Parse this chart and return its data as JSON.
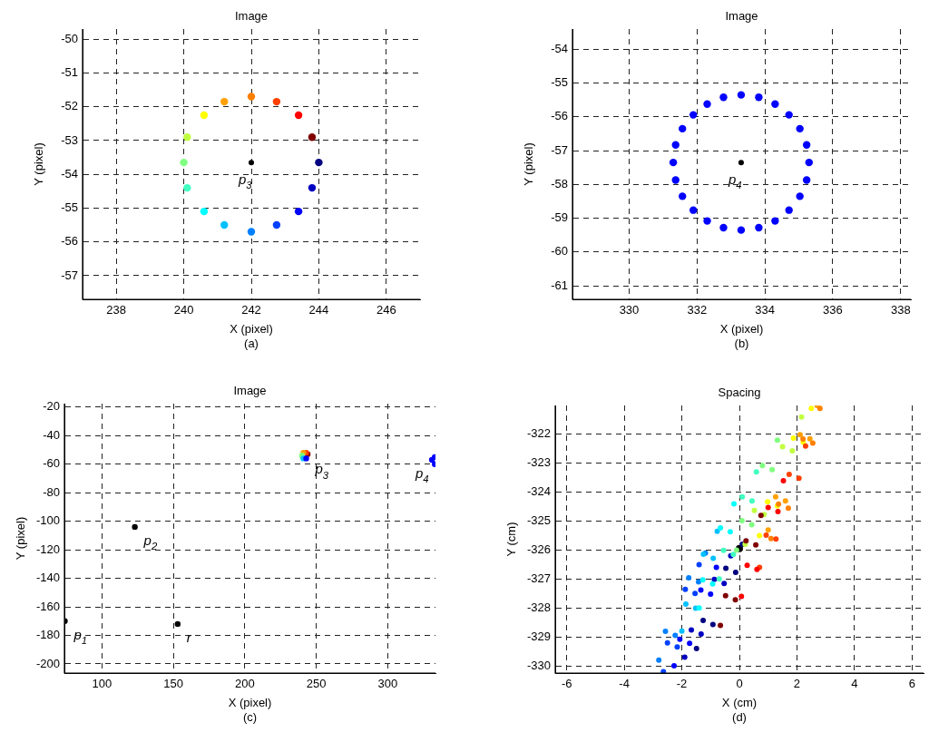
{
  "chart_data": [
    {
      "type": "scatter",
      "title": "Image",
      "xlabel": "X (pixel)",
      "ylabel": "Y (pixel)",
      "marker": "circle",
      "grid": true,
      "xlim": [
        237,
        247
      ],
      "xticks": [
        238,
        240,
        242,
        244,
        246
      ],
      "ylim": [
        -57.7,
        -49.7
      ],
      "yticks": [
        -57,
        -56,
        -55,
        -54,
        -53,
        -52,
        -51,
        -50
      ],
      "series": [
        {
          "x": [
            243.8,
            243.4,
            242.75,
            242,
            241.2,
            240.6,
            240.1,
            240,
            240.1,
            240.6,
            241.2,
            242,
            242.75,
            243.4,
            243.8,
            244
          ],
          "values": [
            -52.9,
            -52.25,
            -51.85,
            -51.7,
            -51.85,
            -52.25,
            -52.9,
            -53.65,
            -54.4,
            -55.1,
            -55.5,
            -55.7,
            -55.5,
            -55.1,
            -54.4,
            -53.65
          ],
          "colors": [
            "#800000",
            "#ff0000",
            "#ff4000",
            "#ff8000",
            "#ffa000",
            "#ffff00",
            "#c0ff40",
            "#80ff80",
            "#40ffc0",
            "#00ffff",
            "#00c0ff",
            "#0080ff",
            "#0040ff",
            "#0000ff",
            "#0000c0",
            "#000080"
          ]
        },
        {
          "x": [
            242
          ],
          "values": [
            -53.65
          ],
          "color": "#000000"
        }
      ],
      "annotations": [
        {
          "text": "p$_{3}$",
          "x": 242,
          "y": -53.65
        },
        "(a)"
      ]
    },
    {
      "type": "scatter",
      "title": "Image",
      "xlabel": "X (pixel)",
      "ylabel": "Y (pixel)",
      "marker": "circle",
      "grid": true,
      "xlim": [
        328.33,
        338.3
      ],
      "xticks": [
        330,
        332,
        334,
        336,
        338
      ],
      "ylim": [
        -61.4,
        -53.4
      ],
      "yticks": [
        -61,
        -60,
        -59,
        -58,
        -57,
        -56,
        -55,
        -54
      ],
      "series": [
        {
          "x": [
            335.3,
            335.23,
            335.03,
            334.71,
            334.3,
            333.82,
            333.3,
            332.78,
            332.3,
            331.89,
            331.57,
            331.37,
            331.3,
            331.37,
            331.57,
            331.89,
            332.3,
            332.78,
            333.3,
            333.82,
            334.3,
            334.71,
            335.03,
            335.23
          ],
          "values": [
            -57.35,
            -56.83,
            -56.35,
            -55.94,
            -55.62,
            -55.42,
            -55.35,
            -55.42,
            -55.62,
            -55.94,
            -56.35,
            -56.83,
            -57.35,
            -57.87,
            -58.35,
            -58.76,
            -59.08,
            -59.28,
            -59.35,
            -59.28,
            -59.08,
            -58.76,
            -58.35,
            -57.87
          ],
          "color": "#0000ff"
        },
        {
          "x": [
            333.3
          ],
          "values": [
            -57.35
          ],
          "color": "#000000"
        }
      ],
      "annotations": [
        {
          "text": "p$_{4}$",
          "x": 333.3,
          "y": -57.35
        },
        "(b)"
      ]
    },
    {
      "type": "scatter",
      "title": "Image",
      "xlabel": "X (pixel)",
      "ylabel": "Y (pixel)",
      "marker": "circle",
      "grid": true,
      "xlim": [
        73.7,
        333.5
      ],
      "xticks": [
        100,
        150,
        200,
        250,
        300
      ],
      "ylim": [
        -206.4,
        -17.6
      ],
      "yticks": [
        -200,
        -180,
        -160,
        -140,
        -120,
        -100,
        -80,
        -60,
        -40,
        -20
      ],
      "series": [
        {
          "x": [
            244,
            243,
            241,
            240,
            241,
            243
          ],
          "values": [
            -53,
            -52,
            -52,
            -54,
            -56,
            -56
          ],
          "colors": [
            "#800000",
            "#ff4000",
            "#ffa000",
            "#80ff80",
            "#00c0ff",
            "#0000ff"
          ]
        },
        {
          "x": [
            331,
            333,
            333
          ],
          "values": [
            -57,
            -55,
            -60
          ],
          "color": "#0000ff"
        },
        {
          "x": [
            74,
            123,
            153
          ],
          "values": [
            -170,
            -104,
            -172
          ],
          "color": "#000000"
        }
      ],
      "annotations": [
        {
          "text": "p$_{1}$",
          "x": 74,
          "y": -170
        },
        {
          "text": "p$_{2}$",
          "x": 123,
          "y": -104
        },
        {
          "text": "p$_{3}$",
          "x": 243,
          "y": -54
        },
        {
          "text": "p$_{4}$",
          "x": 331,
          "y": -57
        },
        {
          "text": "r",
          "x": 153,
          "y": -172
        },
        "(c)"
      ]
    },
    {
      "type": "scatter",
      "title": "Spacing",
      "xlabel": "X (cm)",
      "ylabel": "Y (cm)",
      "marker": "circle",
      "grid": true,
      "xlim": [
        -6.4,
        6.4
      ],
      "xticks": [
        -6,
        -4,
        -2,
        0,
        2,
        4,
        6
      ],
      "ylim": [
        -330.25,
        -321
      ],
      "yticks": [
        -330,
        -329,
        -328,
        -327,
        -326,
        -325,
        -324,
        -323,
        -322
      ],
      "series": [
        {
          "x": [
            -0.66,
            -0.48,
            0.23,
            0.75,
            0.57,
            -0.14
          ],
          "values": [
            -328.6,
            -327.58,
            -325.68,
            -324.8,
            -325.82,
            -327.72
          ],
          "color": "#800000"
        },
        {
          "x": [
            0.07,
            0.27,
            1.0,
            1.53,
            1.34,
            0.61
          ],
          "values": [
            -327.6,
            -326.53,
            -324.53,
            -323.6,
            -324.67,
            -326.67
          ],
          "color": "#ff0000"
        },
        {
          "x": [
            0.7,
            0.93,
            1.73,
            2.3,
            2.07,
            1.27
          ],
          "values": [
            -326.6,
            -325.48,
            -323.38,
            -322.4,
            -323.52,
            -325.62
          ],
          "color": "#ff4000"
        },
        {
          "x": [
            1.1,
            1.36,
            2.21,
            2.8,
            2.55,
            1.7
          ],
          "values": [
            -325.6,
            -324.41,
            -322.16,
            -321.1,
            -322.3,
            -324.55
          ],
          "color": "#ff8000"
        },
        {
          "x": [
            1.0,
            1.26,
            2.11,
            2.7,
            2.45,
            1.6
          ],
          "values": [
            -325.3,
            -324.16,
            -322.01,
            -321.0,
            -322.15,
            -324.3
          ],
          "color": "#ffa000"
        },
        {
          "x": [
            0.7,
            0.98,
            1.88,
            2.5,
            2.22,
            1.32
          ],
          "values": [
            -325.5,
            -324.33,
            -322.13,
            -321.1,
            -322.27,
            -324.47
          ],
          "color": "#ffff00"
        },
        {
          "x": [
            0.2,
            0.52,
            1.5,
            2.16,
            1.84,
            0.86
          ],
          "values": [
            -325.8,
            -324.63,
            -322.43,
            -321.4,
            -322.57,
            -324.77
          ],
          "color": "#c0ff40"
        },
        {
          "x": [
            -0.1,
            0.09,
            0.8,
            1.32,
            1.14,
            0.43
          ],
          "values": [
            -326.0,
            -324.98,
            -323.08,
            -322.2,
            -323.22,
            -325.12
          ],
          "color": "#80ff80"
        },
        {
          "x": [
            -0.7,
            -0.55,
            0.1,
            0.59,
            0.44,
            -0.21
          ],
          "values": [
            -327.0,
            -326.01,
            -324.16,
            -323.3,
            -324.3,
            -326.15
          ],
          "color": "#40ffc0"
        },
        {
          "x": [
            -1.4,
            -1.27,
            -0.66,
            -0.19,
            -0.32,
            -0.93
          ],
          "values": [
            -328.0,
            -327.03,
            -325.23,
            -324.4,
            -325.37,
            -327.17
          ],
          "color": "#00ffff"
        },
        {
          "x": [
            -2.0,
            -1.86,
            -1.25,
            -0.77,
            -0.91,
            -1.52
          ],
          "values": [
            -328.8,
            -327.87,
            -326.14,
            -325.35,
            -326.28,
            -328.01
          ],
          "color": "#00c0ff"
        },
        {
          "x": [
            -2.8,
            -2.57,
            -1.76,
            -1.18,
            -1.42,
            -2.23
          ],
          "values": [
            -329.8,
            -328.81,
            -326.96,
            -326.1,
            -327.1,
            -328.95
          ],
          "color": "#0080ff"
        },
        {
          "x": [
            -2.64,
            -2.5,
            -1.88,
            -1.4,
            -1.54,
            -2.16
          ],
          "values": [
            -330.2,
            -329.21,
            -327.36,
            -326.5,
            -327.5,
            -329.35
          ],
          "color": "#0040ff"
        },
        {
          "x": [
            -2.27,
            -2.07,
            -1.34,
            -0.8,
            -1.0,
            -1.73
          ],
          "values": [
            -330.0,
            -329.08,
            -327.38,
            -326.6,
            -327.52,
            -329.22
          ],
          "color": "#0000ff"
        },
        {
          "x": [
            -1.9,
            -1.67,
            -0.87,
            -0.3,
            -0.53,
            -1.33
          ],
          "values": [
            -329.7,
            -328.76,
            -327.01,
            -326.2,
            -327.15,
            -328.9
          ],
          "color": "#0000c0"
        },
        {
          "x": [
            -1.49,
            -1.26,
            -0.47,
            0.1,
            -0.13,
            -0.92
          ],
          "values": [
            -329.4,
            -328.43,
            -326.63,
            -325.8,
            -326.77,
            -328.57
          ],
          "color": "#000080"
        },
        {
          "x": [
            0
          ],
          "values": [
            -325.95
          ],
          "color": "#000000"
        }
      ],
      "annotations": [
        "(d)"
      ]
    }
  ]
}
